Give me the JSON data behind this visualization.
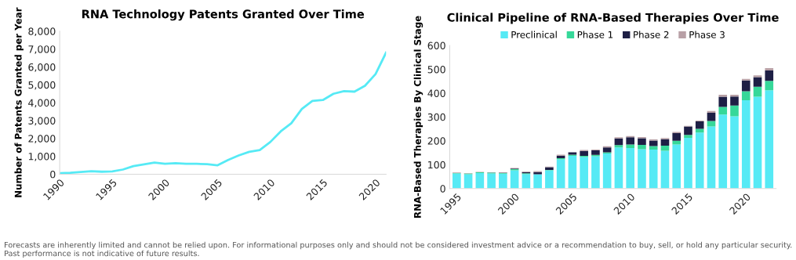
{
  "chart_data": [
    {
      "type": "line",
      "title": "RNA Technology Patents Granted Over Time",
      "ylabel": "Number of Patents Granted per Year",
      "x": [
        1990,
        1991,
        1992,
        1993,
        1994,
        1995,
        1996,
        1997,
        1998,
        1999,
        2000,
        2001,
        2002,
        2003,
        2004,
        2005,
        2006,
        2007,
        2008,
        2009,
        2010,
        2011,
        2012,
        2013,
        2014,
        2015,
        2016,
        2017,
        2018,
        2019,
        2020,
        2021
      ],
      "series": [
        {
          "color": "#56eaf5",
          "values": [
            60,
            80,
            120,
            170,
            140,
            160,
            260,
            450,
            550,
            650,
            580,
            620,
            580,
            580,
            560,
            500,
            800,
            1050,
            1250,
            1350,
            1800,
            2400,
            2850,
            3650,
            4100,
            4150,
            4500,
            4650,
            4620,
            4950,
            5600,
            6800
          ]
        }
      ],
      "xlim": [
        1990,
        2021
      ],
      "xticks": [
        1990,
        1995,
        2000,
        2005,
        2010,
        2015,
        2020
      ],
      "ylim": [
        0,
        8000
      ],
      "yticks": [
        {
          "value": 0,
          "label": "0"
        },
        {
          "value": 1000,
          "label": "1,000"
        },
        {
          "value": 2000,
          "label": "2,000"
        },
        {
          "value": 3000,
          "label": "3,000"
        },
        {
          "value": 4000,
          "label": "4,000"
        },
        {
          "value": 5000,
          "label": "5,000"
        },
        {
          "value": 6000,
          "label": "6,000"
        },
        {
          "value": 7000,
          "label": "7,000"
        },
        {
          "value": 8000,
          "label": "8,000"
        }
      ],
      "grid": false,
      "legend": false,
      "marker": "none",
      "line_style": "solid",
      "annotations": [
        "Forecasts are inherently limited and cannot be relied upon. For informational purposes only and should not be considered investment advice or a recommendation to buy, sell, or hold any particular security. Past performance is not indicative of future results."
      ]
    },
    {
      "type": "bar",
      "stacked": true,
      "title": "Clinical Pipeline of RNA-Based Therapies Over Time",
      "ylabel": "RNA-Based Therapies By Clinical Stage",
      "categories": [
        "1995",
        null,
        null,
        null,
        null,
        "2000",
        null,
        null,
        null,
        null,
        "2005",
        null,
        null,
        null,
        null,
        "2010",
        null,
        null,
        null,
        null,
        "2015",
        null,
        null,
        null,
        null,
        "2020",
        null,
        null
      ],
      "series": [
        {
          "name": "Preclinical",
          "color": "#56eaf5",
          "values": [
            63,
            60,
            65,
            63,
            62,
            76,
            61,
            60,
            76,
            122,
            137,
            132,
            135,
            147,
            172,
            170,
            165,
            163,
            158,
            185,
            213,
            235,
            260,
            310,
            303,
            370,
            385,
            412
          ]
        },
        {
          "name": "Phase 1",
          "color": "#36d899",
          "values": [
            2,
            3,
            3,
            3,
            3,
            5,
            3,
            null,
            2,
            5,
            5,
            5,
            6,
            5,
            10,
            15,
            18,
            15,
            22,
            15,
            12,
            15,
            23,
            32,
            45,
            38,
            42,
            40
          ]
        },
        {
          "name": "Phase 2",
          "color": "#1e1f45",
          "values": [
            0,
            0,
            0,
            1,
            1,
            3,
            5,
            9,
            11,
            11,
            10,
            20,
            19,
            20,
            28,
            30,
            28,
            23,
            27,
            32,
            35,
            32,
            35,
            43,
            38,
            45,
            40,
            43
          ]
        },
        {
          "name": "Phase 3",
          "color": "#b8a0a6",
          "values": [
            2,
            2,
            2,
            null,
            2,
            2,
            2,
            4,
            3,
            4,
            null,
            5,
            3,
            5,
            5,
            5,
            5,
            5,
            5,
            5,
            3,
            3,
            7,
            8,
            7,
            7,
            8,
            10
          ]
        }
      ],
      "ylim": [
        0,
        600
      ],
      "yticks": [
        0,
        100,
        200,
        300,
        400,
        500,
        600
      ],
      "grid": false,
      "legend": "top"
    }
  ]
}
